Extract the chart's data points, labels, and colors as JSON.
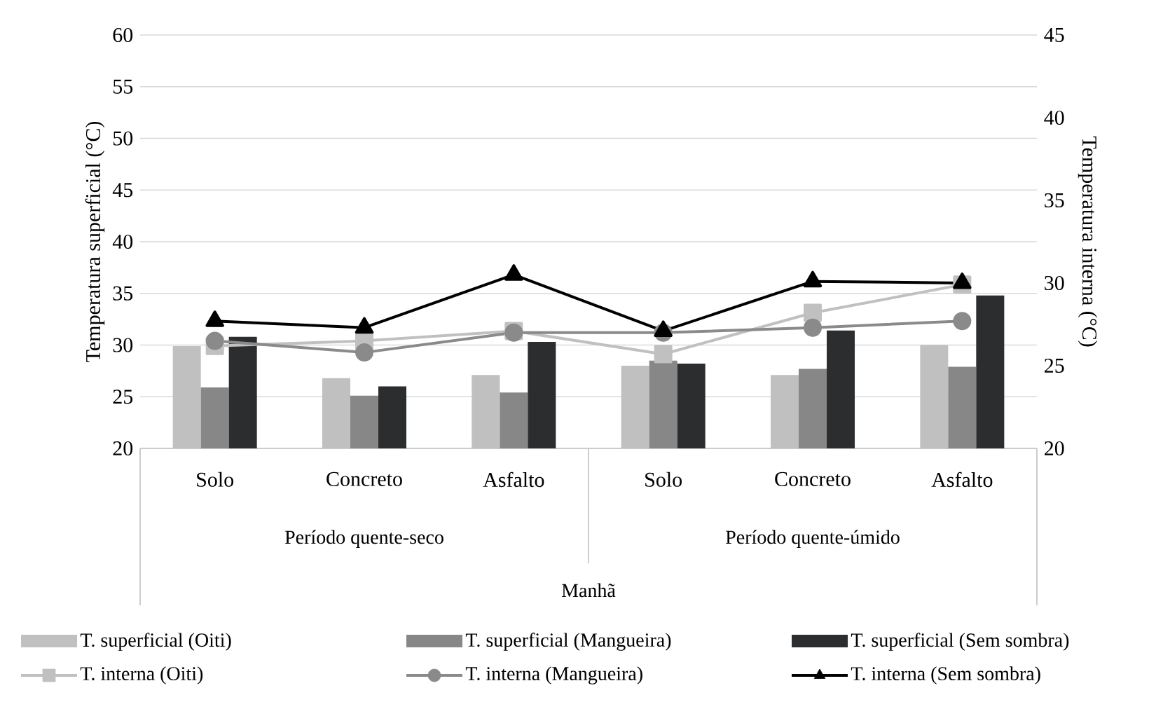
{
  "chart_data": {
    "type": "bar",
    "categories": [
      "Solo",
      "Concreto",
      "Asfalto",
      "Solo",
      "Concreto",
      "Asfalto"
    ],
    "ylabel": "Temperatura superficial (°C)",
    "y2label": "Temperatura interna (°C)",
    "annotations": [
      "Período quente-seco",
      "Período quente-úmido",
      "Manhã"
    ],
    "ylim": [
      20,
      60
    ],
    "yticks": [
      20,
      25,
      30,
      35,
      40,
      45,
      50,
      55,
      60
    ],
    "y2lim": [
      20,
      45
    ],
    "y2ticks": [
      20,
      25,
      30,
      35,
      40,
      45
    ],
    "grid": "y",
    "legend": "bottom",
    "series": [
      {
        "name": "T. superficial (Oiti)",
        "color": "#c0c0c0",
        "values": [
          29.9,
          26.8,
          27.1,
          28.0,
          27.1,
          30.0
        ]
      },
      {
        "name": "T. superficial (Mangueira)",
        "color": "#878787",
        "values": [
          25.9,
          25.1,
          25.4,
          28.5,
          27.7,
          27.9
        ]
      },
      {
        "name": "T. superficial (Sem sombra)",
        "color": "#2b2d2f",
        "values": [
          30.8,
          26.0,
          30.3,
          28.2,
          31.4,
          34.8
        ]
      },
      {
        "name": "T. interna (Oiti)",
        "type": "line",
        "axis": "y2",
        "marker": "square",
        "color": "#c0c0c0",
        "values": [
          26.2,
          26.5,
          27.1,
          25.7,
          28.2,
          29.9
        ]
      },
      {
        "name": "T. interna (Mangueira)",
        "type": "line",
        "axis": "y2",
        "marker": "circle",
        "color": "#8a8a8a",
        "values": [
          26.5,
          25.8,
          27.0,
          27.0,
          27.3,
          27.7
        ]
      },
      {
        "name": "T. interna (Sem sombra)",
        "type": "line",
        "axis": "y2",
        "marker": "triangle",
        "color": "#000000",
        "values": [
          27.7,
          27.3,
          30.5,
          27.1,
          30.1,
          30.0
        ]
      }
    ]
  }
}
